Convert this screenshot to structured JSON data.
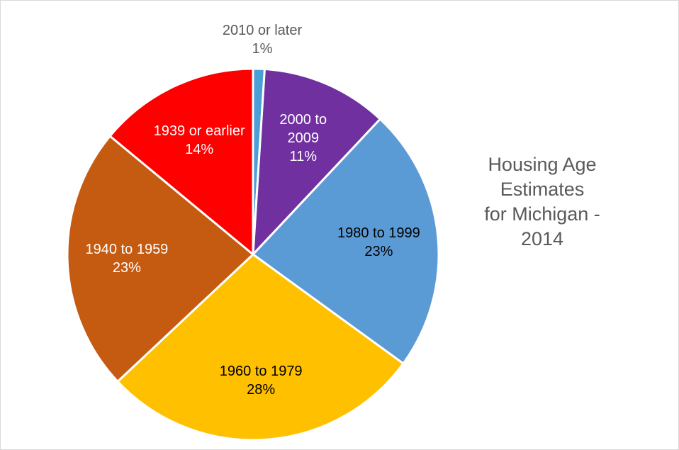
{
  "chart_data": {
    "type": "pie",
    "title": "Housing Age\nEstimates\nfor Michigan -\n2014",
    "categories": [
      "2010 or later",
      "2000 to 2009",
      "1980 to 1999",
      "1960 to 1979",
      "1940 to 1959",
      "1939 or earlier"
    ],
    "values": [
      1,
      11,
      23,
      28,
      23,
      14
    ],
    "value_labels": [
      "1%",
      "11%",
      "23%",
      "28%",
      "23%",
      "14%"
    ],
    "colors": [
      "#4a9fd4",
      "#7030a0",
      "#5b9bd5",
      "#ffc000",
      "#c55a11",
      "#ff0000"
    ]
  }
}
